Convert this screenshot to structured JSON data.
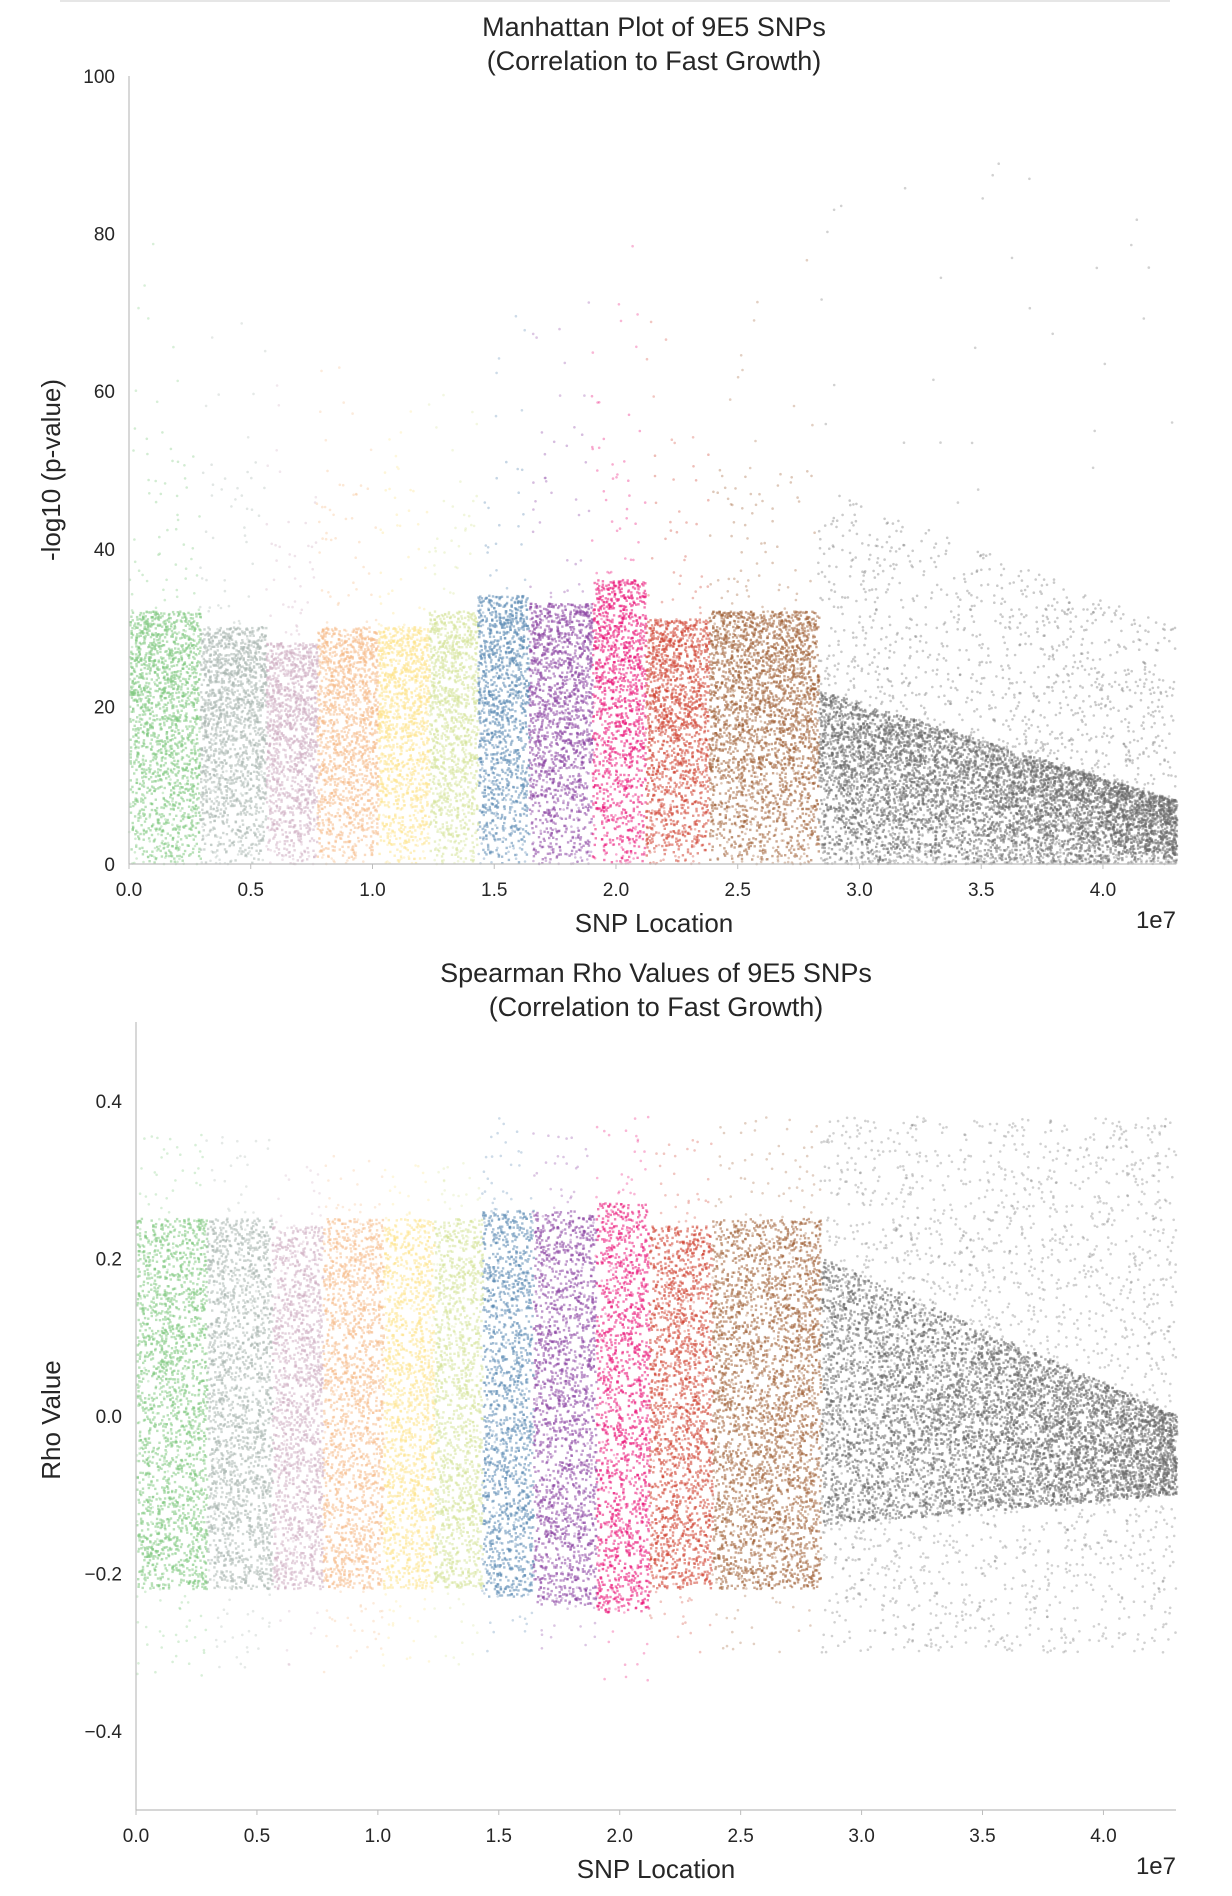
{
  "chart_data": [
    {
      "type": "scatter",
      "title": "Manhattan Plot of 9E5 SNPs",
      "subtitle": "(Correlation to Fast Growth)",
      "xlabel": "SNP Location",
      "ylabel": "-log10 (p-value)",
      "x_multiplier": "1e7",
      "xlim": [
        0,
        43000000
      ],
      "ylim": [
        0,
        100
      ],
      "x_ticks": [
        0,
        5000000,
        10000000,
        15000000,
        20000000,
        25000000,
        30000000,
        35000000,
        40000000
      ],
      "x_tick_labels": [
        "0.0",
        "0.5",
        "1.0",
        "1.5",
        "2.0",
        "2.5",
        "3.0",
        "3.5",
        "4.0"
      ],
      "y_ticks": [
        0,
        20,
        40,
        60,
        80,
        100
      ],
      "y_tick_labels": [
        "0",
        "20",
        "40",
        "60",
        "80",
        "100"
      ],
      "grid": false,
      "point_alpha": 0.25,
      "groups": [
        {
          "x_range": [
            0,
            2900000
          ],
          "color": "#7fc97f",
          "dense_max": 32,
          "sparse_max": 56,
          "peak_max": 82
        },
        {
          "x_range": [
            2900000,
            5600000
          ],
          "color": "#a9b7b1",
          "dense_max": 30,
          "sparse_max": 52,
          "peak_max": 80
        },
        {
          "x_range": [
            5600000,
            7700000
          ],
          "color": "#d0afc2",
          "dense_max": 28,
          "sparse_max": 46,
          "peak_max": 62
        },
        {
          "x_range": [
            7700000,
            10200000
          ],
          "color": "#f5bc8a",
          "dense_max": 30,
          "sparse_max": 50,
          "peak_max": 64
        },
        {
          "x_range": [
            10200000,
            12300000
          ],
          "color": "#fde38c",
          "dense_max": 30,
          "sparse_max": 50,
          "peak_max": 58
        },
        {
          "x_range": [
            12300000,
            14300000
          ],
          "color": "#d6e49b",
          "dense_max": 32,
          "sparse_max": 50,
          "peak_max": 60
        },
        {
          "x_range": [
            14300000,
            16400000
          ],
          "color": "#5a88b2",
          "dense_max": 34,
          "sparse_max": 52,
          "peak_max": 70
        },
        {
          "x_range": [
            16400000,
            19000000
          ],
          "color": "#8a43a3",
          "dense_max": 33,
          "sparse_max": 56,
          "peak_max": 72
        },
        {
          "x_range": [
            19000000,
            21200000
          ],
          "color": "#ea1277",
          "dense_max": 36,
          "sparse_max": 60,
          "peak_max": 82
        },
        {
          "x_range": [
            21200000,
            23800000
          ],
          "color": "#cf4232",
          "dense_max": 31,
          "sparse_max": 52,
          "peak_max": 70
        },
        {
          "x_range": [
            23800000,
            28300000
          ],
          "color": "#a06136",
          "dense_max": 32,
          "sparse_max": 50,
          "peak_max": 80
        },
        {
          "x_range": [
            28300000,
            43000000
          ],
          "color": "#666666",
          "dense_max": 12,
          "sparse_max": 45,
          "peak_max": 90
        }
      ]
    },
    {
      "type": "scatter",
      "title": "Spearman Rho Values of 9E5 SNPs",
      "subtitle": "(Correlation to Fast Growth)",
      "xlabel": "SNP Location",
      "ylabel": "Rho Value",
      "x_multiplier": "1e7",
      "xlim": [
        0,
        43000000
      ],
      "ylim": [
        -0.5,
        0.5
      ],
      "x_ticks": [
        0,
        5000000,
        10000000,
        15000000,
        20000000,
        25000000,
        30000000,
        35000000,
        40000000
      ],
      "x_tick_labels": [
        "0.0",
        "0.5",
        "1.0",
        "1.5",
        "2.0",
        "2.5",
        "3.0",
        "3.5",
        "4.0"
      ],
      "y_ticks": [
        -0.4,
        -0.2,
        0.0,
        0.2,
        0.4
      ],
      "y_tick_labels": [
        "−0.4",
        "−0.2",
        "0.0",
        "0.2",
        "0.4"
      ],
      "grid": false,
      "point_alpha": 0.25,
      "groups": [
        {
          "x_range": [
            0,
            2900000
          ],
          "color": "#7fc97f",
          "dense_range": [
            -0.22,
            0.25
          ],
          "sparse_range": [
            -0.33,
            0.36
          ]
        },
        {
          "x_range": [
            2900000,
            5600000
          ],
          "color": "#a9b7b1",
          "dense_range": [
            -0.22,
            0.25
          ],
          "sparse_range": [
            -0.33,
            0.36
          ]
        },
        {
          "x_range": [
            5600000,
            7700000
          ],
          "color": "#d0afc2",
          "dense_range": [
            -0.22,
            0.24
          ],
          "sparse_range": [
            -0.32,
            0.32
          ]
        },
        {
          "x_range": [
            7700000,
            10200000
          ],
          "color": "#f5bc8a",
          "dense_range": [
            -0.22,
            0.25
          ],
          "sparse_range": [
            -0.33,
            0.34
          ]
        },
        {
          "x_range": [
            10200000,
            12300000
          ],
          "color": "#fde38c",
          "dense_range": [
            -0.22,
            0.25
          ],
          "sparse_range": [
            -0.32,
            0.32
          ]
        },
        {
          "x_range": [
            12300000,
            14300000
          ],
          "color": "#d6e49b",
          "dense_range": [
            -0.22,
            0.25
          ],
          "sparse_range": [
            -0.32,
            0.33
          ]
        },
        {
          "x_range": [
            14300000,
            16400000
          ],
          "color": "#5a88b2",
          "dense_range": [
            -0.23,
            0.26
          ],
          "sparse_range": [
            -0.3,
            0.38
          ]
        },
        {
          "x_range": [
            16400000,
            19000000
          ],
          "color": "#8a43a3",
          "dense_range": [
            -0.24,
            0.26
          ],
          "sparse_range": [
            -0.3,
            0.36
          ]
        },
        {
          "x_range": [
            19000000,
            21200000
          ],
          "color": "#ea1277",
          "dense_range": [
            -0.25,
            0.27
          ],
          "sparse_range": [
            -0.34,
            0.38
          ]
        },
        {
          "x_range": [
            21200000,
            23800000
          ],
          "color": "#cf4232",
          "dense_range": [
            -0.22,
            0.24
          ],
          "sparse_range": [
            -0.3,
            0.35
          ]
        },
        {
          "x_range": [
            23800000,
            28300000
          ],
          "color": "#a06136",
          "dense_range": [
            -0.22,
            0.25
          ],
          "sparse_range": [
            -0.3,
            0.38
          ]
        },
        {
          "x_range": [
            28300000,
            43000000
          ],
          "color": "#666666",
          "dense_range": [
            -0.12,
            0.0
          ],
          "sparse_range": [
            -0.3,
            0.38
          ]
        }
      ]
    }
  ]
}
